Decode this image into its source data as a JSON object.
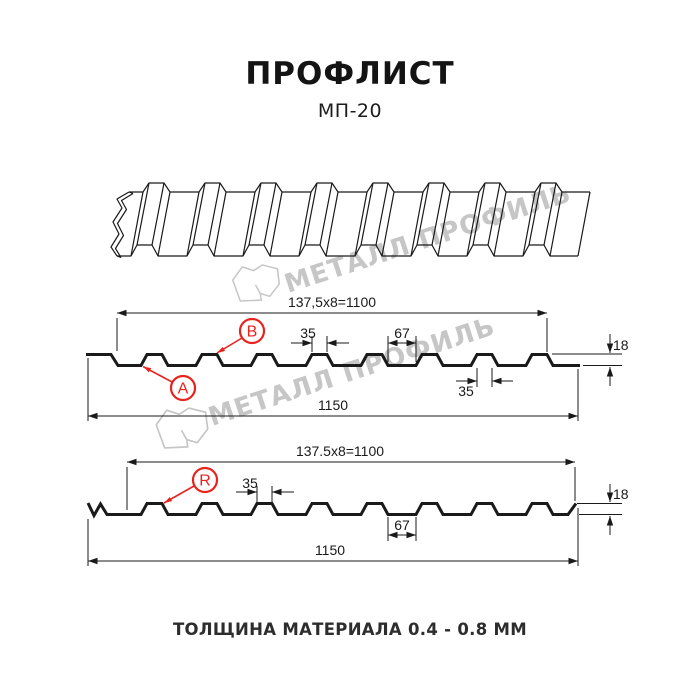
{
  "header": {
    "title": "ПРОФЛИСТ",
    "subtitle": "МП-20"
  },
  "watermark": {
    "text": "МЕТАЛЛ ПРОФИЛЬ"
  },
  "profile_top": {
    "coverage_width": "137,5x8=1100",
    "rib_top_width": "35",
    "valley_width": "67",
    "height": "18",
    "rib_bottom_width": "35",
    "overall_width": "1150",
    "label_a": "A",
    "label_b": "B"
  },
  "profile_bottom": {
    "coverage_width": "137.5x8=1100",
    "rib_top_width": "35",
    "valley_width": "67",
    "height": "18",
    "overall_width": "1150",
    "label_r": "R"
  },
  "footer": {
    "text": "ТОЛЩИНА МАТЕРИАЛА 0.4 - 0.8 ММ"
  },
  "colors": {
    "accent_red": "#e8231e",
    "line": "#1a1a1a",
    "watermark_gray": "#c6c6c6"
  }
}
